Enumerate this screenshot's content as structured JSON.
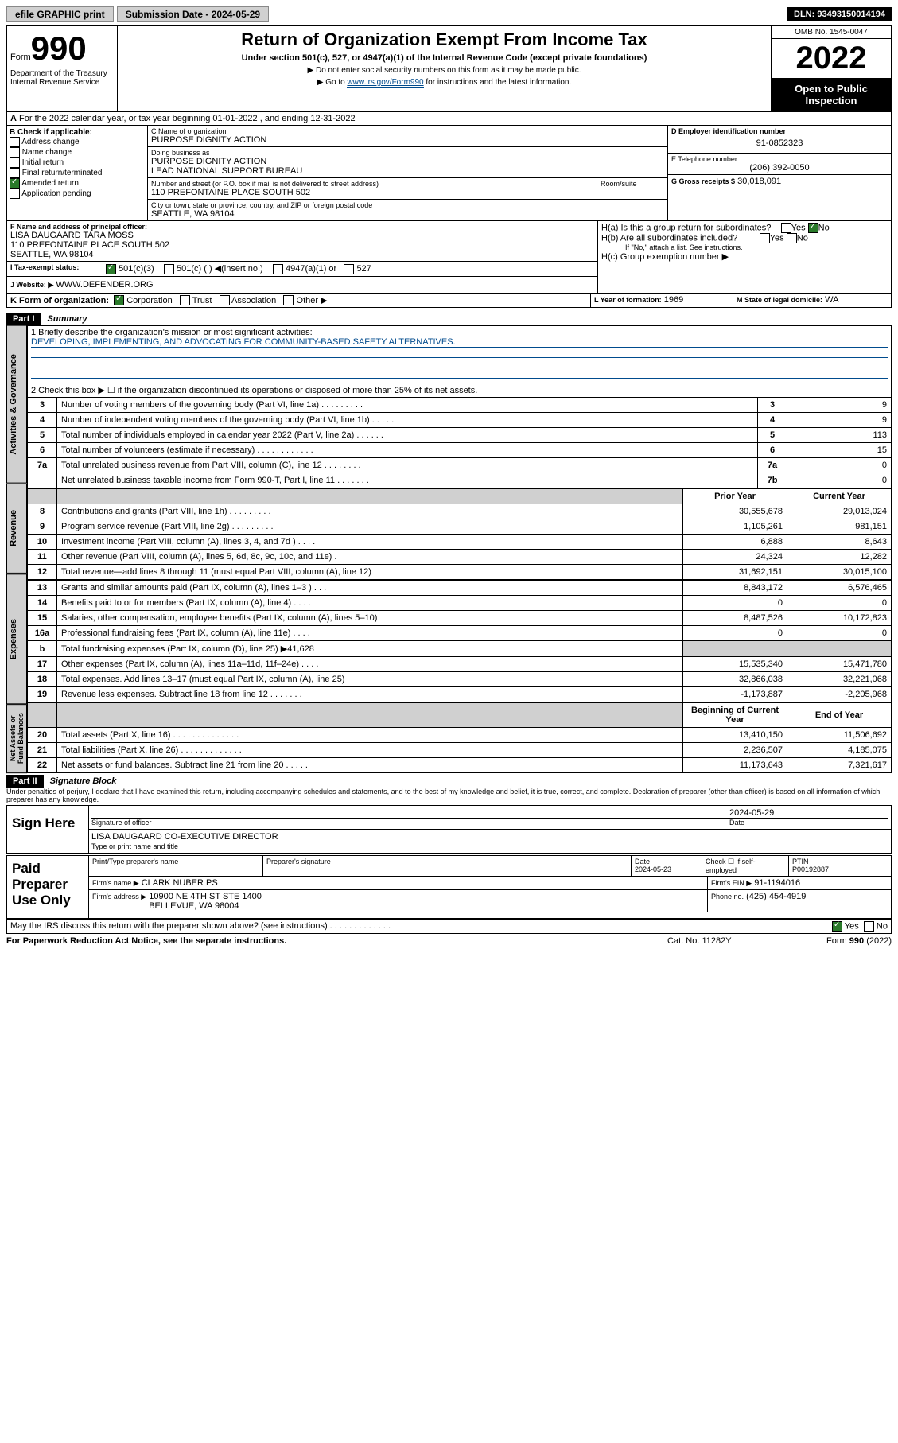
{
  "topbar": {
    "efile": "efile GRAPHIC print",
    "submission_label": "Submission Date - 2024-05-29",
    "dln": "DLN: 93493150014194"
  },
  "header": {
    "form_label": "Form",
    "form_num": "990",
    "dept": "Department of the Treasury\nInternal Revenue Service",
    "title": "Return of Organization Exempt From Income Tax",
    "sub": "Under section 501(c), 527, or 4947(a)(1) of the Internal Revenue Code (except private foundations)",
    "note1": "▶ Do not enter social security numbers on this form as it may be made public.",
    "note2_pre": "▶ Go to ",
    "note2_link": "www.irs.gov/Form990",
    "note2_post": " for instructions and the latest information.",
    "omb": "OMB No. 1545-0047",
    "year": "2022",
    "open": "Open to Public Inspection"
  },
  "line_a": "For the 2022 calendar year, or tax year beginning 01-01-2022   , and ending 12-31-2022",
  "check_b": {
    "label": "B Check if applicable:",
    "items": [
      "Address change",
      "Name change",
      "Initial return",
      "Final return/terminated",
      "Amended return",
      "Application pending"
    ],
    "amended_checked": true
  },
  "block_c": {
    "label": "C Name of organization",
    "name": "PURPOSE DIGNITY ACTION",
    "dba_label": "Doing business as",
    "dba": "PURPOSE DIGNITY ACTION\nLEAD NATIONAL SUPPORT BUREAU",
    "street_label": "Number and street (or P.O. box if mail is not delivered to street address)",
    "street": "110 PREFONTAINE PLACE SOUTH 502",
    "room_label": "Room/suite",
    "city_label": "City or town, state or province, country, and ZIP or foreign postal code",
    "city": "SEATTLE, WA  98104"
  },
  "block_d": {
    "label": "D Employer identification number",
    "value": "91-0852323"
  },
  "block_e": {
    "label": "E Telephone number",
    "value": "(206) 392-0050"
  },
  "block_g": {
    "label": "G Gross receipts $",
    "value": "30,018,091"
  },
  "block_f": {
    "label": "F  Name and address of principal officer:",
    "name": "LISA DAUGAARD TARA MOSS",
    "addr1": "110 PREFONTAINE PLACE SOUTH 502",
    "addr2": "SEATTLE, WA  98104"
  },
  "block_h": {
    "ha": "H(a)  Is this a group return for subordinates?",
    "hb": "H(b)  Are all subordinates included?",
    "hb_note": "If \"No,\" attach a list. See instructions.",
    "hc": "H(c)  Group exemption number ▶"
  },
  "block_i": {
    "label": "I   Tax-exempt status:",
    "opts": [
      "501(c)(3)",
      "501(c) (  ) ◀(insert no.)",
      "4947(a)(1) or",
      "527"
    ]
  },
  "block_j": {
    "label": "J   Website: ▶",
    "value": "WWW.DEFENDER.ORG"
  },
  "block_k": "K Form of organization:",
  "block_k_opts": [
    "Corporation",
    "Trust",
    "Association",
    "Other ▶"
  ],
  "block_l": {
    "label": "L Year of formation:",
    "value": "1969"
  },
  "block_m": {
    "label": "M State of legal domicile:",
    "value": "WA"
  },
  "part1": {
    "head": "Part I",
    "title": "Summary"
  },
  "p1_1_label": "1  Briefly describe the organization's mission or most significant activities:",
  "p1_1_value": "DEVELOPING, IMPLEMENTING, AND ADVOCATING FOR COMMUNITY-BASED SAFETY ALTERNATIVES.",
  "p1_2": "2   Check this box ▶ ☐  if the organization discontinued its operations or disposed of more than 25% of its net assets.",
  "section_labels": {
    "gov": "Activities & Governance",
    "rev": "Revenue",
    "exp": "Expenses",
    "net": "Net Assets or Fund Balances"
  },
  "col_heads": {
    "prior": "Prior Year",
    "current": "Current Year",
    "begin": "Beginning of Current Year",
    "end": "End of Year"
  },
  "gov_lines": [
    {
      "n": "3",
      "t": "Number of voting members of the governing body (Part VI, line 1a)   .    .    .    .    .    .    .    .    .",
      "b": "3",
      "v": "9"
    },
    {
      "n": "4",
      "t": "Number of independent voting members of the governing body (Part VI, line 1b)   .    .    .    .    .",
      "b": "4",
      "v": "9"
    },
    {
      "n": "5",
      "t": "Total number of individuals employed in calendar year 2022 (Part V, line 2a)   .    .    .    .    .    .",
      "b": "5",
      "v": "113"
    },
    {
      "n": "6",
      "t": "Total number of volunteers (estimate if necessary)   .    .    .    .    .    .    .    .    .    .    .    .",
      "b": "6",
      "v": "15"
    },
    {
      "n": "7a",
      "t": "Total unrelated business revenue from Part VIII, column (C), line 12   .    .    .    .    .    .    .    .",
      "b": "7a",
      "v": "0"
    },
    {
      "n": "",
      "t": "Net unrelated business taxable income from Form 990-T, Part I, line 11   .    .    .    .    .    .    .",
      "b": "7b",
      "v": "0"
    }
  ],
  "rev_lines": [
    {
      "n": "8",
      "t": "Contributions and grants (Part VIII, line 1h)   .    .    .    .    .    .    .    .    .",
      "p": "30,555,678",
      "c": "29,013,024"
    },
    {
      "n": "9",
      "t": "Program service revenue (Part VIII, line 2g)   .    .    .    .    .    .    .    .    .",
      "p": "1,105,261",
      "c": "981,151"
    },
    {
      "n": "10",
      "t": "Investment income (Part VIII, column (A), lines 3, 4, and 7d )   .    .    .    .",
      "p": "6,888",
      "c": "8,643"
    },
    {
      "n": "11",
      "t": "Other revenue (Part VIII, column (A), lines 5, 6d, 8c, 9c, 10c, and 11e)   .",
      "p": "24,324",
      "c": "12,282"
    },
    {
      "n": "12",
      "t": "Total revenue—add lines 8 through 11 (must equal Part VIII, column (A), line 12)",
      "p": "31,692,151",
      "c": "30,015,100"
    }
  ],
  "exp_lines": [
    {
      "n": "13",
      "t": "Grants and similar amounts paid (Part IX, column (A), lines 1–3 )   .    .    .",
      "p": "8,843,172",
      "c": "6,576,465"
    },
    {
      "n": "14",
      "t": "Benefits paid to or for members (Part IX, column (A), line 4)   .    .    .    .",
      "p": "0",
      "c": "0"
    },
    {
      "n": "15",
      "t": "Salaries, other compensation, employee benefits (Part IX, column (A), lines 5–10)",
      "p": "8,487,526",
      "c": "10,172,823"
    },
    {
      "n": "16a",
      "t": "Professional fundraising fees (Part IX, column (A), line 11e)   .    .    .    .",
      "p": "0",
      "c": "0"
    },
    {
      "n": "b",
      "t": "Total fundraising expenses (Part IX, column (D), line 25) ▶41,628",
      "p": "",
      "c": "",
      "grey": true
    },
    {
      "n": "17",
      "t": "Other expenses (Part IX, column (A), lines 11a–11d, 11f–24e)   .    .    .    .",
      "p": "15,535,340",
      "c": "15,471,780"
    },
    {
      "n": "18",
      "t": "Total expenses. Add lines 13–17 (must equal Part IX, column (A), line 25)",
      "p": "32,866,038",
      "c": "32,221,068"
    },
    {
      "n": "19",
      "t": "Revenue less expenses. Subtract line 18 from line 12   .    .    .    .    .    .    .",
      "p": "-1,173,887",
      "c": "-2,205,968"
    }
  ],
  "net_lines": [
    {
      "n": "20",
      "t": "Total assets (Part X, line 16)   .    .    .    .    .    .    .    .    .    .    .    .    .    .",
      "p": "13,410,150",
      "c": "11,506,692"
    },
    {
      "n": "21",
      "t": "Total liabilities (Part X, line 26)   .    .    .    .    .    .    .    .    .    .    .    .    .",
      "p": "2,236,507",
      "c": "4,185,075"
    },
    {
      "n": "22",
      "t": "Net assets or fund balances. Subtract line 21 from line 20   .    .    .    .    .",
      "p": "11,173,643",
      "c": "7,321,617"
    }
  ],
  "part2": {
    "head": "Part II",
    "title": "Signature Block"
  },
  "part2_text": "Under penalties of perjury, I declare that I have examined this return, including accompanying schedules and statements, and to the best of my knowledge and belief, it is true, correct, and complete. Declaration of preparer (other than officer) is based on all information of which preparer has any knowledge.",
  "sign": {
    "label": "Sign Here",
    "sig_label": "Signature of officer",
    "date": "2024-05-29",
    "date_label": "Date",
    "name": "LISA DAUGAARD  CO-EXECUTIVE DIRECTOR",
    "name_label": "Type or print name and title"
  },
  "paid": {
    "label": "Paid Preparer Use Only",
    "h1": "Print/Type preparer's name",
    "h2": "Preparer's signature",
    "h3": "Date",
    "h3v": "2024-05-23",
    "h4": "Check ☐ if self-employed",
    "h5": "PTIN",
    "h5v": "P00192887",
    "firm_label": "Firm's name   ▶",
    "firm": "CLARK NUBER PS",
    "ein_label": "Firm's EIN ▶",
    "ein": "91-1194016",
    "addr_label": "Firm's address ▶",
    "addr": "10900 NE 4TH ST STE 1400\nBELLEVUE, WA  98004",
    "phone_label": "Phone no.",
    "phone": "(425) 454-4919"
  },
  "footer": {
    "discuss": "May the IRS discuss this return with the preparer shown above? (see instructions)   .    .    .    .    .    .    .    .    .    .    .    .    .",
    "paperwork": "For Paperwork Reduction Act Notice, see the separate instructions.",
    "cat": "Cat. No. 11282Y",
    "form": "Form 990 (2022)"
  }
}
